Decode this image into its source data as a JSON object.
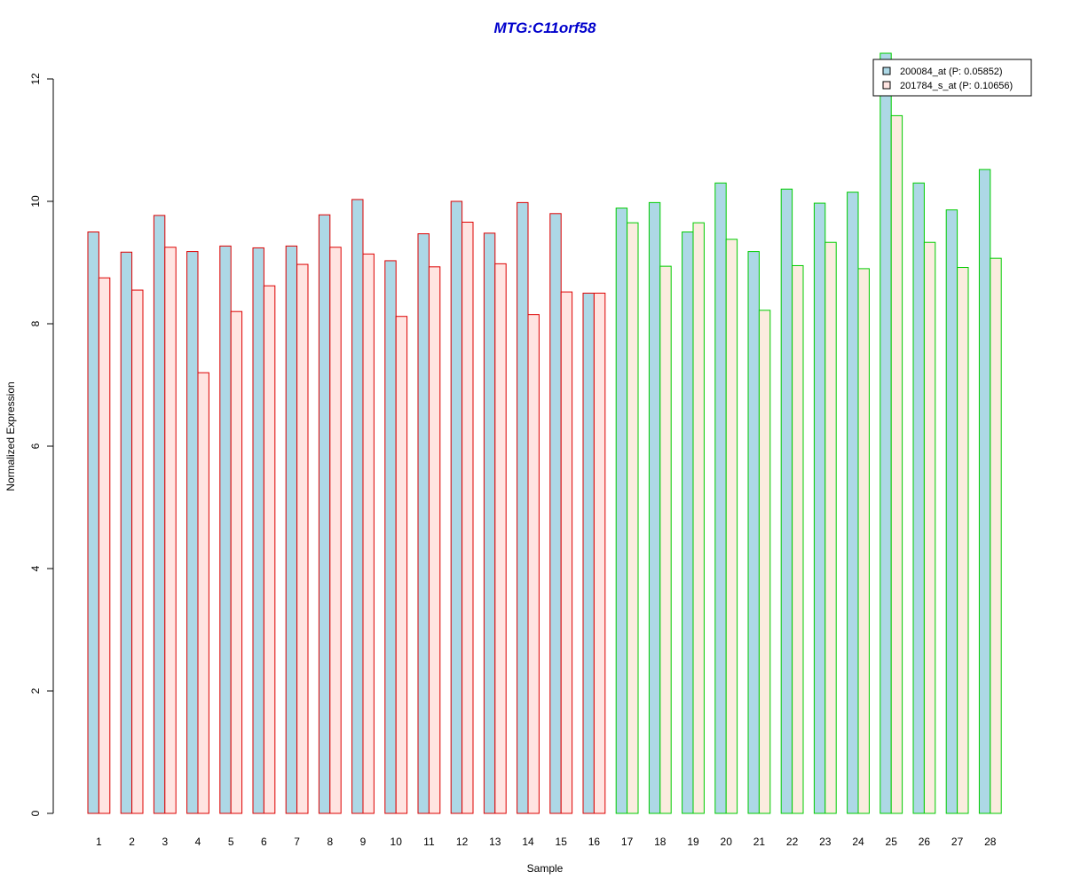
{
  "chart_data": {
    "type": "bar",
    "title": "MTG:C11orf58",
    "xlabel": "Sample",
    "ylabel": "Normalized Expression",
    "ylim": [
      0,
      12
    ],
    "yticks": [
      "0",
      "2",
      "4",
      "6",
      "8",
      "10",
      "12"
    ],
    "categories": [
      "1",
      "2",
      "3",
      "4",
      "5",
      "6",
      "7",
      "8",
      "9",
      "10",
      "11",
      "12",
      "13",
      "14",
      "15",
      "16",
      "17",
      "18",
      "19",
      "20",
      "21",
      "22",
      "23",
      "24",
      "25",
      "26",
      "27",
      "28"
    ],
    "series": [
      {
        "name": "200084_at (P: 0.05852)",
        "values": [
          9.5,
          9.17,
          9.77,
          9.18,
          9.27,
          9.24,
          9.27,
          9.78,
          10.03,
          9.03,
          9.47,
          10.0,
          9.48,
          9.98,
          9.8,
          8.5,
          9.89,
          9.98,
          9.5,
          10.3,
          9.18,
          10.2,
          9.97,
          10.15,
          12.42,
          10.3,
          9.86,
          10.52
        ]
      },
      {
        "name": "201784_s_at (P: 0.10656)",
        "values": [
          8.75,
          8.55,
          9.25,
          7.2,
          8.2,
          8.62,
          8.97,
          9.25,
          9.14,
          8.12,
          8.93,
          9.66,
          8.98,
          8.15,
          8.52,
          8.5,
          9.65,
          8.94,
          9.65,
          9.38,
          8.22,
          8.95,
          9.33,
          8.9,
          11.4,
          9.33,
          8.92,
          9.07
        ]
      }
    ],
    "group_outline_colors": [
      "#dd0000",
      "#00cc00"
    ],
    "group_split_after": 16,
    "fill_colors": {
      "series1": "#add8e6",
      "series2_group1": "#ffe4e1",
      "series2_group2": "#fbecdf"
    },
    "title_color": "#0000cc",
    "legend_position": "top-right",
    "grid": false
  }
}
